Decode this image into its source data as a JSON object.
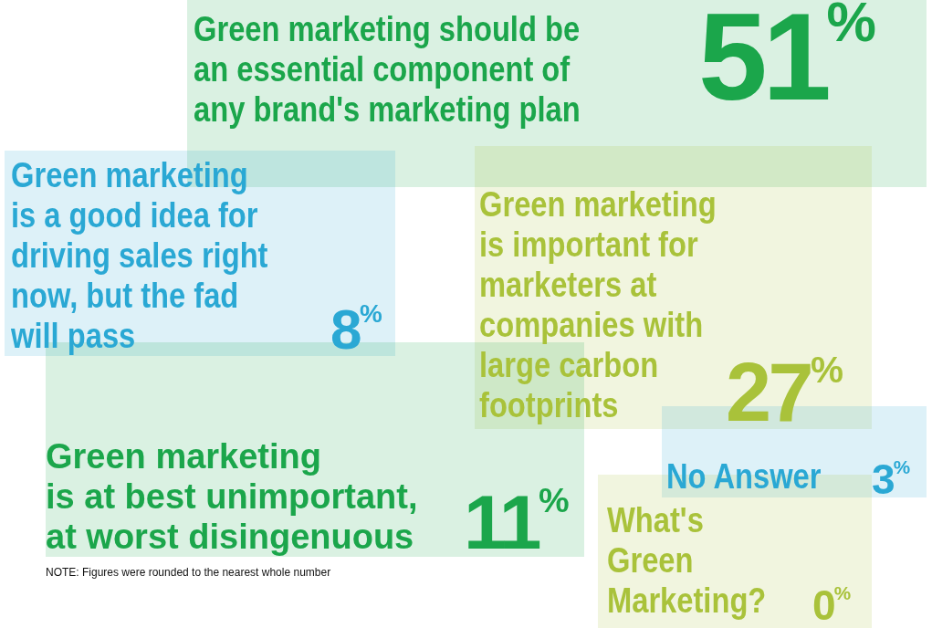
{
  "chart_data": {
    "type": "other",
    "categories": [
      "Green marketing should be\nan essential component of\nany brand's marketing plan",
      "Green marketing\nis a good idea for\ndriving sales right\nnow, but the fad\nwill pass",
      "Green marketing\nis important for\nmarketers at\ncompanies with\nlarge carbon\nfootprints",
      "Green marketing\nis at best unimportant,\nat worst disingenuous",
      "No Answer",
      "What's\nGreen\nMarketing?"
    ],
    "values": [
      51,
      8,
      27,
      11,
      3,
      0
    ],
    "value_labels": [
      "51%",
      "8%",
      "27%",
      "11%",
      "3%",
      "0%"
    ],
    "colors": [
      "#1ba64b",
      "#2aa8d4",
      "#a9c23a",
      "#1ba64b",
      "#2aa8d4",
      "#a9c23a"
    ],
    "annotations": [
      "NOTE:  Figures were rounded to the nearest whole number"
    ]
  }
}
